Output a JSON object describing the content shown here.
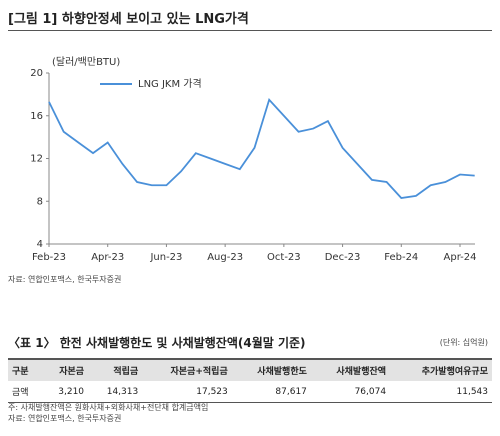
{
  "figure_title": "[그림 1] 하향안정세 보이고 있는 LNG가격",
  "chart_data": {
    "type": "line",
    "y_label": "(달러/백만BTU)",
    "categories": [
      "Feb-23",
      null,
      null,
      null,
      "Apr-23",
      null,
      null,
      null,
      "Jun-23",
      null,
      null,
      null,
      "Aug-23",
      null,
      null,
      null,
      "Oct-23",
      null,
      null,
      null,
      "Dec-23",
      null,
      null,
      null,
      "Feb-24",
      null,
      null,
      null,
      "Apr-24",
      null
    ],
    "series": [
      {
        "name": "LNG JKM 가격",
        "color": "#4a90d9",
        "values": [
          17.3,
          14.5,
          13.5,
          12.5,
          13.5,
          11.5,
          9.8,
          9.5,
          9.5,
          10.8,
          12.5,
          12.0,
          11.5,
          11.0,
          13.0,
          17.5,
          16.0,
          14.5,
          14.8,
          15.5,
          13.0,
          11.5,
          10.0,
          9.8,
          8.3,
          8.5,
          9.5,
          9.8,
          10.5,
          10.4
        ]
      }
    ],
    "ylim": [
      4,
      20
    ],
    "yticks": [
      4,
      8,
      12,
      16,
      20
    ],
    "grid": false,
    "legend": "top"
  },
  "chart_source": "자료: 연합인포맥스, 한국투자증권",
  "table_title": "〈표 1〉 한전 사채발행한도 및 사채발행잔액(4월말 기준)",
  "table_unit": "(단위: 십억원)",
  "table": {
    "header": [
      "구분",
      "자본금",
      "적립금",
      "자본금+적립금",
      "사채발행한도",
      "사채발행잔액",
      "추가발행여유규모"
    ],
    "rows": [
      [
        "금액",
        "3,210",
        "14,313",
        "17,523",
        "87,617",
        "76,074",
        "11,543"
      ]
    ]
  },
  "notes": [
    "주: 사채발행잔액은 원화사채+외화사채+전단채 합계금액임",
    "자료: 연합인포맥스, 한국투자증권"
  ]
}
